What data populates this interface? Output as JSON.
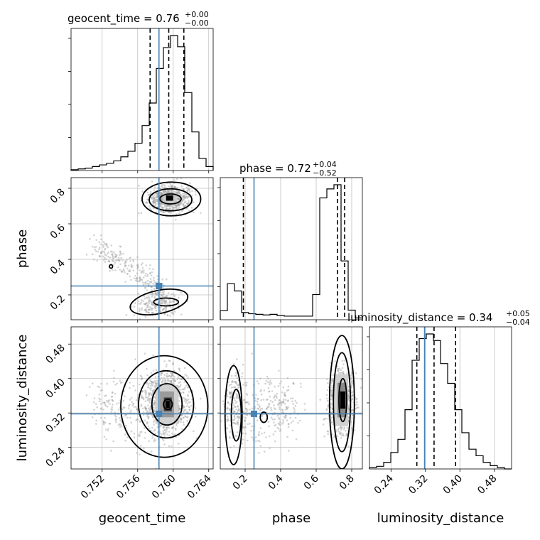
{
  "chart_data": {
    "type": "corner",
    "parameters": [
      "geocent_time",
      "phase",
      "luminosity_distance"
    ],
    "axis_labels": {
      "geocent_time": "geocent_time",
      "phase": "phase",
      "luminosity_distance": "luminosity_distance"
    },
    "titles": [
      {
        "parameter": "geocent_time",
        "main": "geocent_time = 0.76",
        "sup": "+0.00",
        "sub": "−0.00"
      },
      {
        "parameter": "phase",
        "main": "phase = 0.72",
        "sup": "+0.04",
        "sub": "−0.52"
      },
      {
        "parameter": "luminosity_distance",
        "main": "luminosity_distance = 0.34",
        "sup": "+0.05",
        "sub": "−0.04"
      }
    ],
    "ranges": {
      "geocent_time": [
        0.7485,
        0.7645
      ],
      "phase": [
        0.06,
        0.86
      ],
      "luminosity_distance": [
        0.19,
        0.52
      ]
    },
    "ticks": {
      "geocent_time": [
        "0.752",
        "0.756",
        "0.760",
        "0.764"
      ],
      "phase": [
        "0.2",
        "0.4",
        "0.6",
        "0.8"
      ],
      "luminosity_distance": [
        "0.24",
        "0.32",
        "0.40",
        "0.48"
      ]
    },
    "truths": {
      "geocent_time": 0.7584,
      "phase": 0.25,
      "luminosity_distance": 0.318
    },
    "quantiles": {
      "geocent_time": [
        0.7574,
        0.7595,
        0.7612
      ],
      "phase": [
        0.19,
        0.72,
        0.76
      ],
      "luminosity_distance": [
        0.3,
        0.34,
        0.39
      ]
    },
    "histograms": {
      "geocent_time": {
        "edges_start": 0.7485,
        "bin_width": 0.0008,
        "counts": [
          1,
          2,
          3,
          5,
          7,
          9,
          12,
          17,
          24,
          34,
          56,
          84,
          127,
          153,
          168,
          154,
          97,
          48,
          15,
          5
        ]
      },
      "phase": {
        "edges_start": 0.06,
        "bin_width": 0.04,
        "counts": [
          15,
          60,
          48,
          12,
          10,
          9,
          8,
          9,
          7,
          6,
          6,
          6,
          6,
          42,
          203,
          218,
          225,
          98,
          16,
          3
        ]
      },
      "luminosity_distance": {
        "edges_start": 0.19,
        "bin_width": 0.0165,
        "counts": [
          2,
          4,
          10,
          25,
          45,
          90,
          165,
          198,
          205,
          195,
          160,
          130,
          90,
          55,
          30,
          20,
          10,
          5,
          2,
          0
        ]
      }
    },
    "grid": true,
    "colors": {
      "truth": "#4682b4",
      "contour": "#000000",
      "hist": "#000000",
      "points": "#a0a0a0",
      "grid": "#bfbfbf"
    }
  }
}
